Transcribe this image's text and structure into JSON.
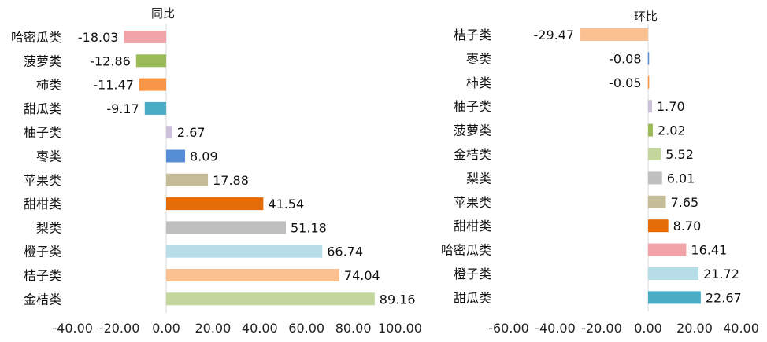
{
  "chart_data": [
    {
      "type": "bar",
      "orientation": "horizontal",
      "title": "同比",
      "categories": [
        "哈密瓜类",
        "菠萝类",
        "柿类",
        "甜瓜类",
        "柚子类",
        "枣类",
        "苹果类",
        "甜柑类",
        "梨类",
        "橙子类",
        "桔子类",
        "金桔类"
      ],
      "values": [
        -18.03,
        -12.86,
        -11.47,
        -9.17,
        2.67,
        8.09,
        17.88,
        41.54,
        51.18,
        66.74,
        74.04,
        89.16
      ],
      "value_labels": [
        "-18.03",
        "-12.86",
        "-11.47",
        "-9.17",
        "2.67",
        "8.09",
        "17.88",
        "41.54",
        "51.18",
        "66.74",
        "74.04",
        "89.16"
      ],
      "colors": [
        "#f2a3a7",
        "#9bbb59",
        "#f79646",
        "#4bacc6",
        "#ccc0da",
        "#558ed5",
        "#c4bd97",
        "#e36c09",
        "#bfbfbf",
        "#b7dde8",
        "#fac090",
        "#c3d69b"
      ],
      "xlim": [
        -40,
        100
      ],
      "ticks": [
        -40,
        -20,
        0,
        20,
        40,
        60,
        80,
        100
      ],
      "tick_labels": [
        "-40.00",
        "-20.00",
        "0.00",
        "20.00",
        "40.00",
        "60.00",
        "80.00",
        "100.00"
      ],
      "grid": false
    },
    {
      "type": "bar",
      "orientation": "horizontal",
      "title": "环比",
      "categories": [
        "桔子类",
        "枣类",
        "柿类",
        "柚子类",
        "菠萝类",
        "金桔类",
        "梨类",
        "苹果类",
        "甜柑类",
        "哈密瓜类",
        "橙子类",
        "甜瓜类"
      ],
      "values": [
        -29.47,
        -0.08,
        -0.05,
        1.7,
        2.02,
        5.52,
        6.01,
        7.65,
        8.7,
        16.41,
        21.72,
        22.67
      ],
      "value_labels": [
        "-29.47",
        "-0.08",
        "-0.05",
        "1.70",
        "2.02",
        "5.52",
        "6.01",
        "7.65",
        "8.70",
        "16.41",
        "21.72",
        "22.67"
      ],
      "colors": [
        "#fac090",
        "#558ed5",
        "#f79646",
        "#ccc0da",
        "#9bbb59",
        "#c3d69b",
        "#bfbfbf",
        "#c4bd97",
        "#e36c09",
        "#f2a3a7",
        "#b7dde8",
        "#4bacc6"
      ],
      "xlim": [
        -60,
        40
      ],
      "ticks": [
        -60,
        -40,
        -20,
        0,
        20,
        40
      ],
      "tick_labels": [
        "-60.00",
        "-40.00",
        "-20.00",
        "0.00",
        "20.00",
        "40.00"
      ],
      "grid": false
    }
  ]
}
